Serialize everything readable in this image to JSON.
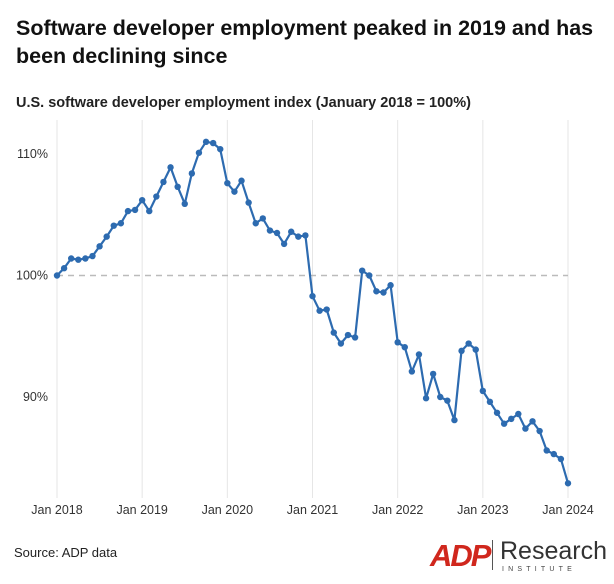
{
  "title": "Software developer employment peaked in 2019 and has been declining since",
  "subtitle": "U.S. software developer employment index (January 2018 = 100%)",
  "source": "Source: ADP data",
  "logo": {
    "brand": "ADP",
    "name": "Research",
    "tagline": "INSTITUTE"
  },
  "colors": {
    "line": "#2d6bb0",
    "reference": "#bbbbbb",
    "grid": "#e6e6e6",
    "logo_red": "#d0271d"
  },
  "chart_data": {
    "type": "line",
    "title": "Software developer employment peaked in 2019 and has been declining since",
    "ylabel": "U.S. software developer employment index (January 2018 = 100%)",
    "x_tick_labels": [
      "Jan 2018",
      "Jan 2019",
      "Jan 2020",
      "Jan 2021",
      "Jan 2022",
      "Jan 2023",
      "Jan 2024"
    ],
    "y_tick_labels": [
      "110%",
      "100%",
      "90%"
    ],
    "y_ticks": [
      110,
      100,
      90
    ],
    "ylim": [
      82.5,
      112.5
    ],
    "reference_line": 100,
    "grid": "vertical",
    "x": [
      "2018-01",
      "2018-02",
      "2018-03",
      "2018-04",
      "2018-05",
      "2018-06",
      "2018-07",
      "2018-08",
      "2018-09",
      "2018-10",
      "2018-11",
      "2018-12",
      "2019-01",
      "2019-02",
      "2019-03",
      "2019-04",
      "2019-05",
      "2019-06",
      "2019-07",
      "2019-08",
      "2019-09",
      "2019-10",
      "2019-11",
      "2019-12",
      "2020-01",
      "2020-02",
      "2020-03",
      "2020-04",
      "2020-05",
      "2020-06",
      "2020-07",
      "2020-08",
      "2020-09",
      "2020-10",
      "2020-11",
      "2020-12",
      "2021-01",
      "2021-02",
      "2021-03",
      "2021-04",
      "2021-05",
      "2021-06",
      "2021-07",
      "2021-08",
      "2021-09",
      "2021-10",
      "2021-11",
      "2021-12",
      "2022-01",
      "2022-02",
      "2022-03",
      "2022-04",
      "2022-05",
      "2022-06",
      "2022-07",
      "2022-08",
      "2022-09",
      "2022-10",
      "2022-11",
      "2022-12",
      "2023-01",
      "2023-02",
      "2023-03",
      "2023-04",
      "2023-05",
      "2023-06",
      "2023-07",
      "2023-08",
      "2023-09",
      "2023-10",
      "2023-11",
      "2023-12",
      "2024-01"
    ],
    "series": [
      {
        "values": [
          100.0,
          100.6,
          101.4,
          101.3,
          101.4,
          101.6,
          102.4,
          103.2,
          104.1,
          104.3,
          105.3,
          105.4,
          106.2,
          105.3,
          106.5,
          107.7,
          108.9,
          107.3,
          105.9,
          108.4,
          110.1,
          111.0,
          110.9,
          110.4,
          107.6,
          106.9,
          107.8,
          106.0,
          104.3,
          104.7,
          103.7,
          103.5,
          102.6,
          103.6,
          103.2,
          103.3,
          98.3,
          97.1,
          97.2,
          95.3,
          94.4,
          95.1,
          94.9,
          100.4,
          100.0,
          98.7,
          98.6,
          99.2,
          94.5,
          94.1,
          92.1,
          93.5,
          89.9,
          91.9,
          90.0,
          89.7,
          88.1,
          93.8,
          94.4,
          93.9,
          90.5,
          89.6,
          88.7,
          87.8,
          88.2,
          88.6,
          87.4,
          88.0,
          87.2,
          85.6,
          85.3,
          84.9,
          82.9
        ]
      }
    ]
  }
}
